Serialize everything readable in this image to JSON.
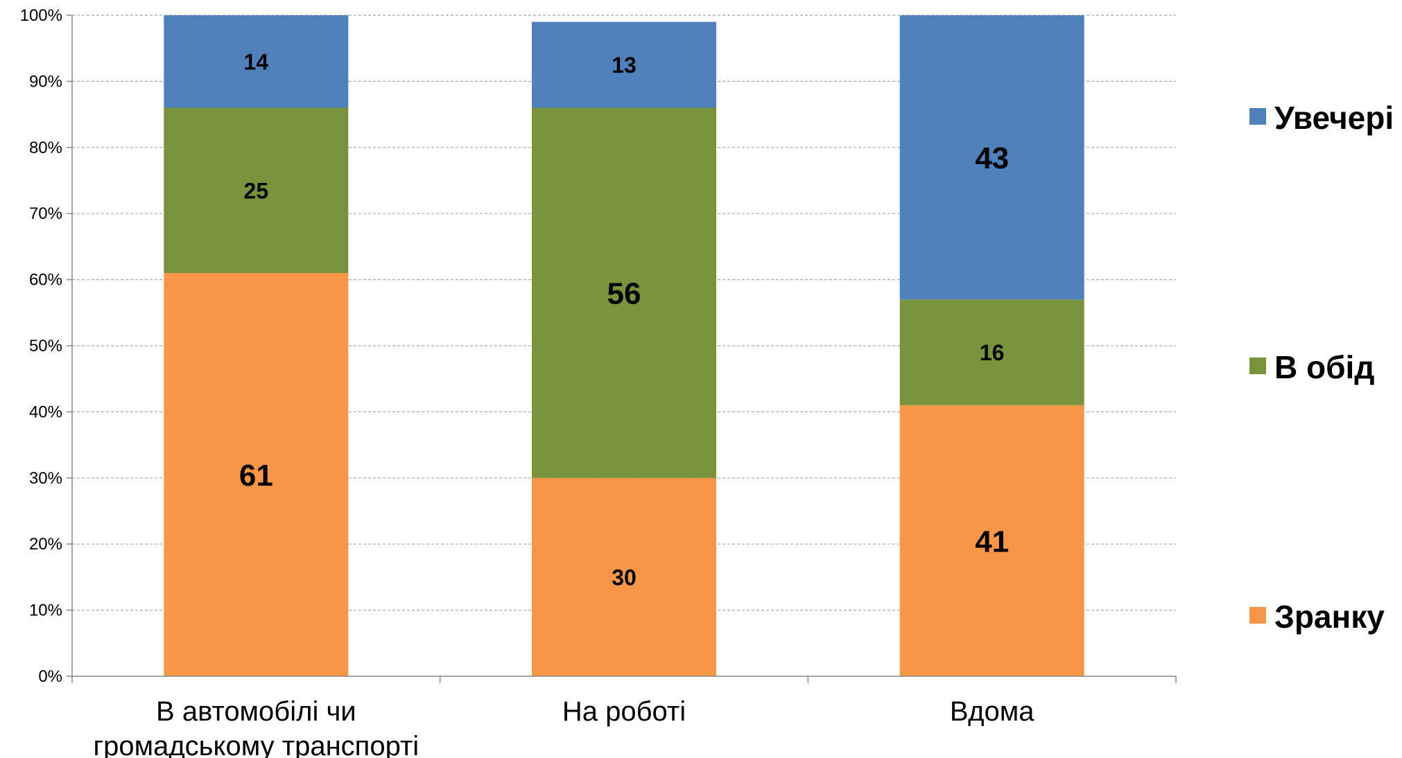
{
  "chart_data": {
    "type": "bar",
    "stacked": true,
    "percent_stacked": true,
    "categories": [
      [
        "В автомобілі чи",
        "громадському транспорті"
      ],
      [
        "На роботі"
      ],
      [
        "Вдома"
      ]
    ],
    "series": [
      {
        "name": "Зранку",
        "color": "#F79646",
        "values": [
          61,
          30,
          41
        ]
      },
      {
        "name": "В обід",
        "color": "#77933C",
        "values": [
          25,
          56,
          16
        ]
      },
      {
        "name": "Увечері",
        "color": "#4F81BD",
        "values": [
          14,
          13,
          43
        ]
      }
    ],
    "y_ticks": [
      "0%",
      "10%",
      "20%",
      "30%",
      "40%",
      "50%",
      "60%",
      "70%",
      "80%",
      "90%",
      "100%"
    ],
    "ylim": [
      0,
      100
    ],
    "grid": true,
    "gridline_style": "dashed",
    "legend_position": "right",
    "legend_order": [
      "Увечері",
      "В обід",
      "Зранку"
    ]
  }
}
